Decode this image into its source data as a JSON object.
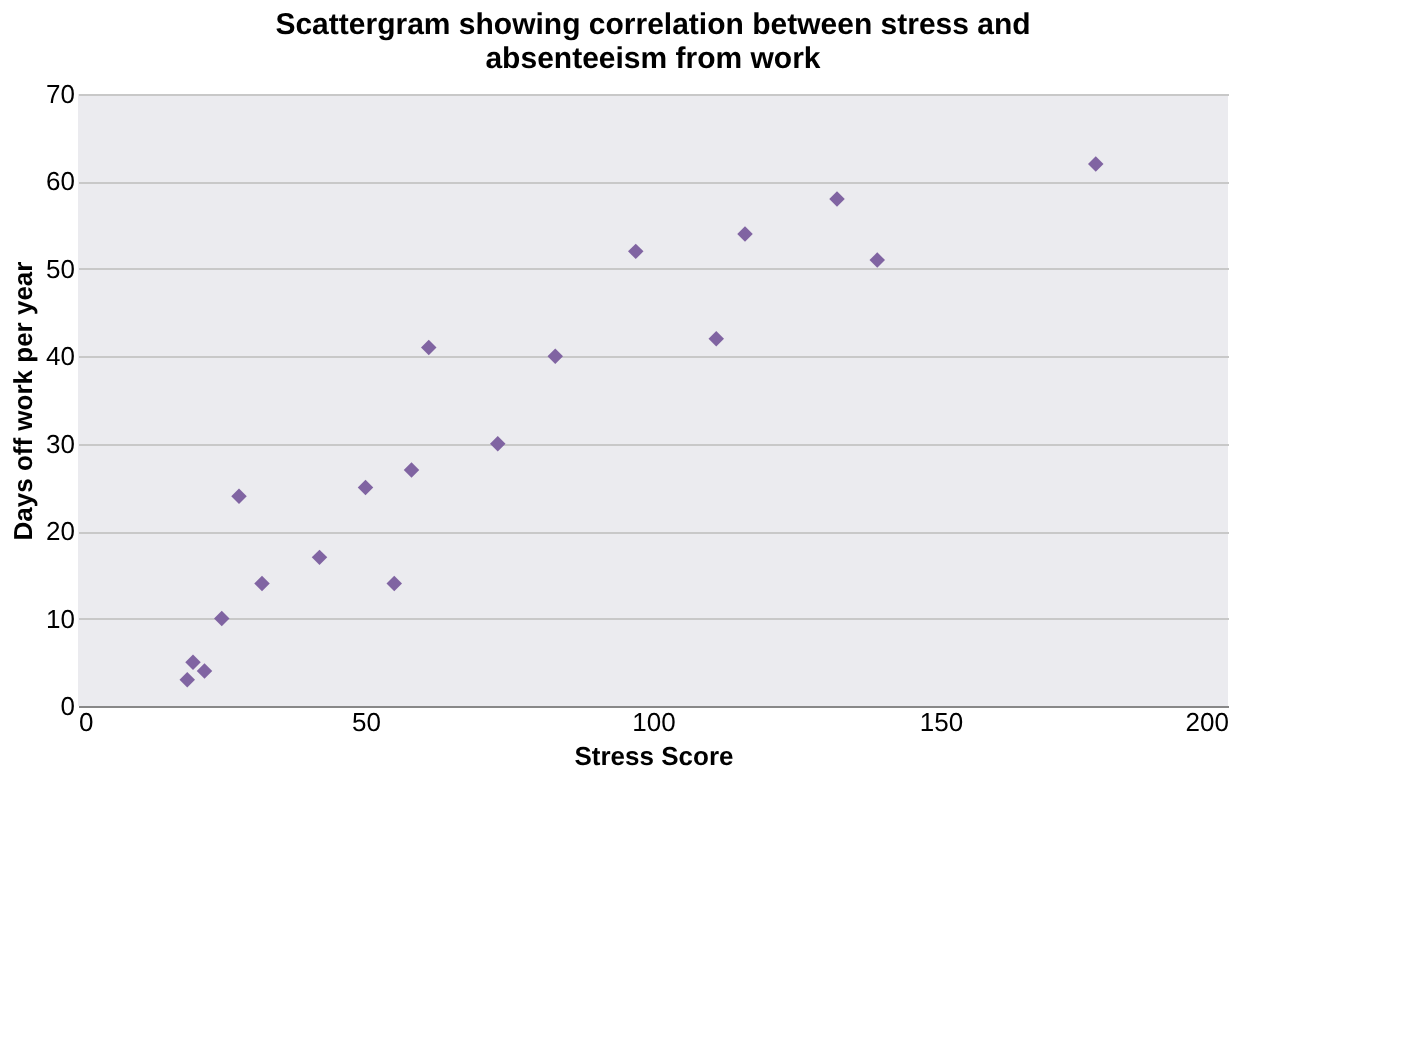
{
  "chart_data": {
    "type": "scatter",
    "title": "Scattergram showing correlation between stress and absenteeism from work",
    "xlabel": "Stress Score",
    "ylabel": "Days off work per year",
    "x": [
      19,
      20,
      22,
      25,
      28,
      32,
      42,
      50,
      55,
      58,
      61,
      73,
      83,
      97,
      111,
      116,
      132,
      139,
      177
    ],
    "series": [
      {
        "color": "#8064a2",
        "values": [
          3,
          5,
          4,
          10,
          24,
          14,
          17,
          25,
          14,
          27,
          41,
          30,
          40,
          52,
          42,
          54,
          58,
          51,
          62
        ]
      }
    ],
    "xlim": [
      0,
      200
    ],
    "xticks": [
      0,
      50,
      100,
      150,
      200
    ],
    "ylim": [
      0,
      70
    ],
    "yticks": [
      0,
      10,
      20,
      30,
      40,
      50,
      60,
      70
    ],
    "grid": "y",
    "marker": "diamond",
    "legend": false
  }
}
